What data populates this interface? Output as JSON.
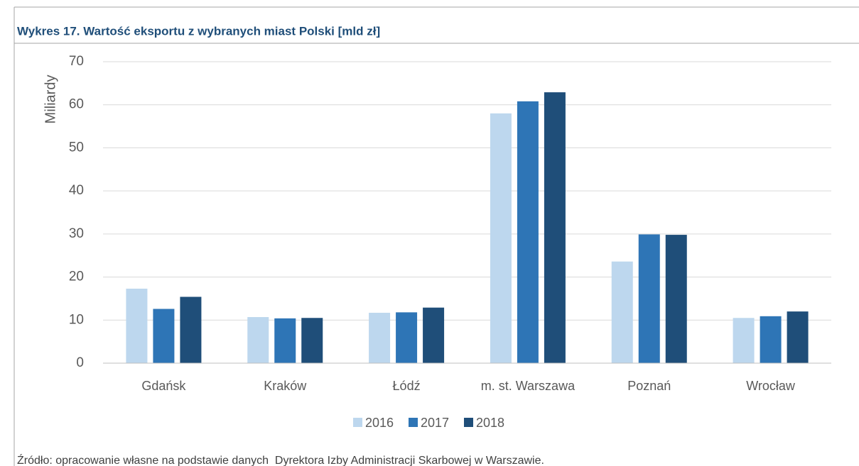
{
  "chart_data": {
    "type": "bar",
    "title": "Wykres 17. Wartość eksportu z wybranych miast Polski [mld zł]",
    "y_axis_label": "Miliardy",
    "categories": [
      "Gdańsk",
      "Kraków",
      "Łódź",
      "m. st. Warszawa",
      "Poznań",
      "Wrocław"
    ],
    "series": [
      {
        "name": "2016",
        "color": "#bdd7ee",
        "values": [
          17.3,
          10.7,
          11.7,
          58.0,
          23.6,
          10.5
        ]
      },
      {
        "name": "2017",
        "color": "#2e75b6",
        "values": [
          12.6,
          10.4,
          11.8,
          60.8,
          29.9,
          10.9
        ]
      },
      {
        "name": "2018",
        "color": "#1f4e79",
        "values": [
          15.4,
          10.5,
          12.9,
          62.9,
          29.8,
          12.0
        ]
      }
    ],
    "ylim": [
      0,
      70
    ],
    "yticks": [
      0,
      10,
      20,
      30,
      40,
      50,
      60,
      70
    ],
    "grid": true,
    "legend": "bottom",
    "source": "Źródło: opracowanie własne na podstawie danych  Dyrektora Izby Administracji Skarbowej w Warszawie."
  }
}
